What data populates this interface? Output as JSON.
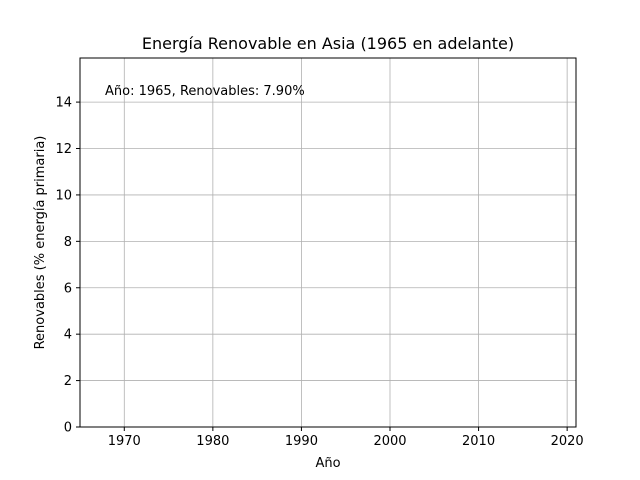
{
  "chart_data": {
    "type": "line",
    "title": "Energía Renovable en Asia (1965 en adelante)",
    "xlabel": "Año",
    "ylabel": "Renovables (% energía primaria)",
    "xlim": [
      1965,
      2021
    ],
    "ylim": [
      0,
      15.9
    ],
    "x_ticks": [
      1970,
      1980,
      1990,
      2000,
      2010,
      2020
    ],
    "y_ticks": [
      0,
      2,
      4,
      6,
      8,
      10,
      12,
      14
    ],
    "grid": true,
    "series": [
      {
        "x": [
          1965
        ],
        "values": [
          7.9
        ],
        "color": "#1f77b4"
      }
    ],
    "annotation": "Año: 1965, Renovables: 7.90%"
  }
}
